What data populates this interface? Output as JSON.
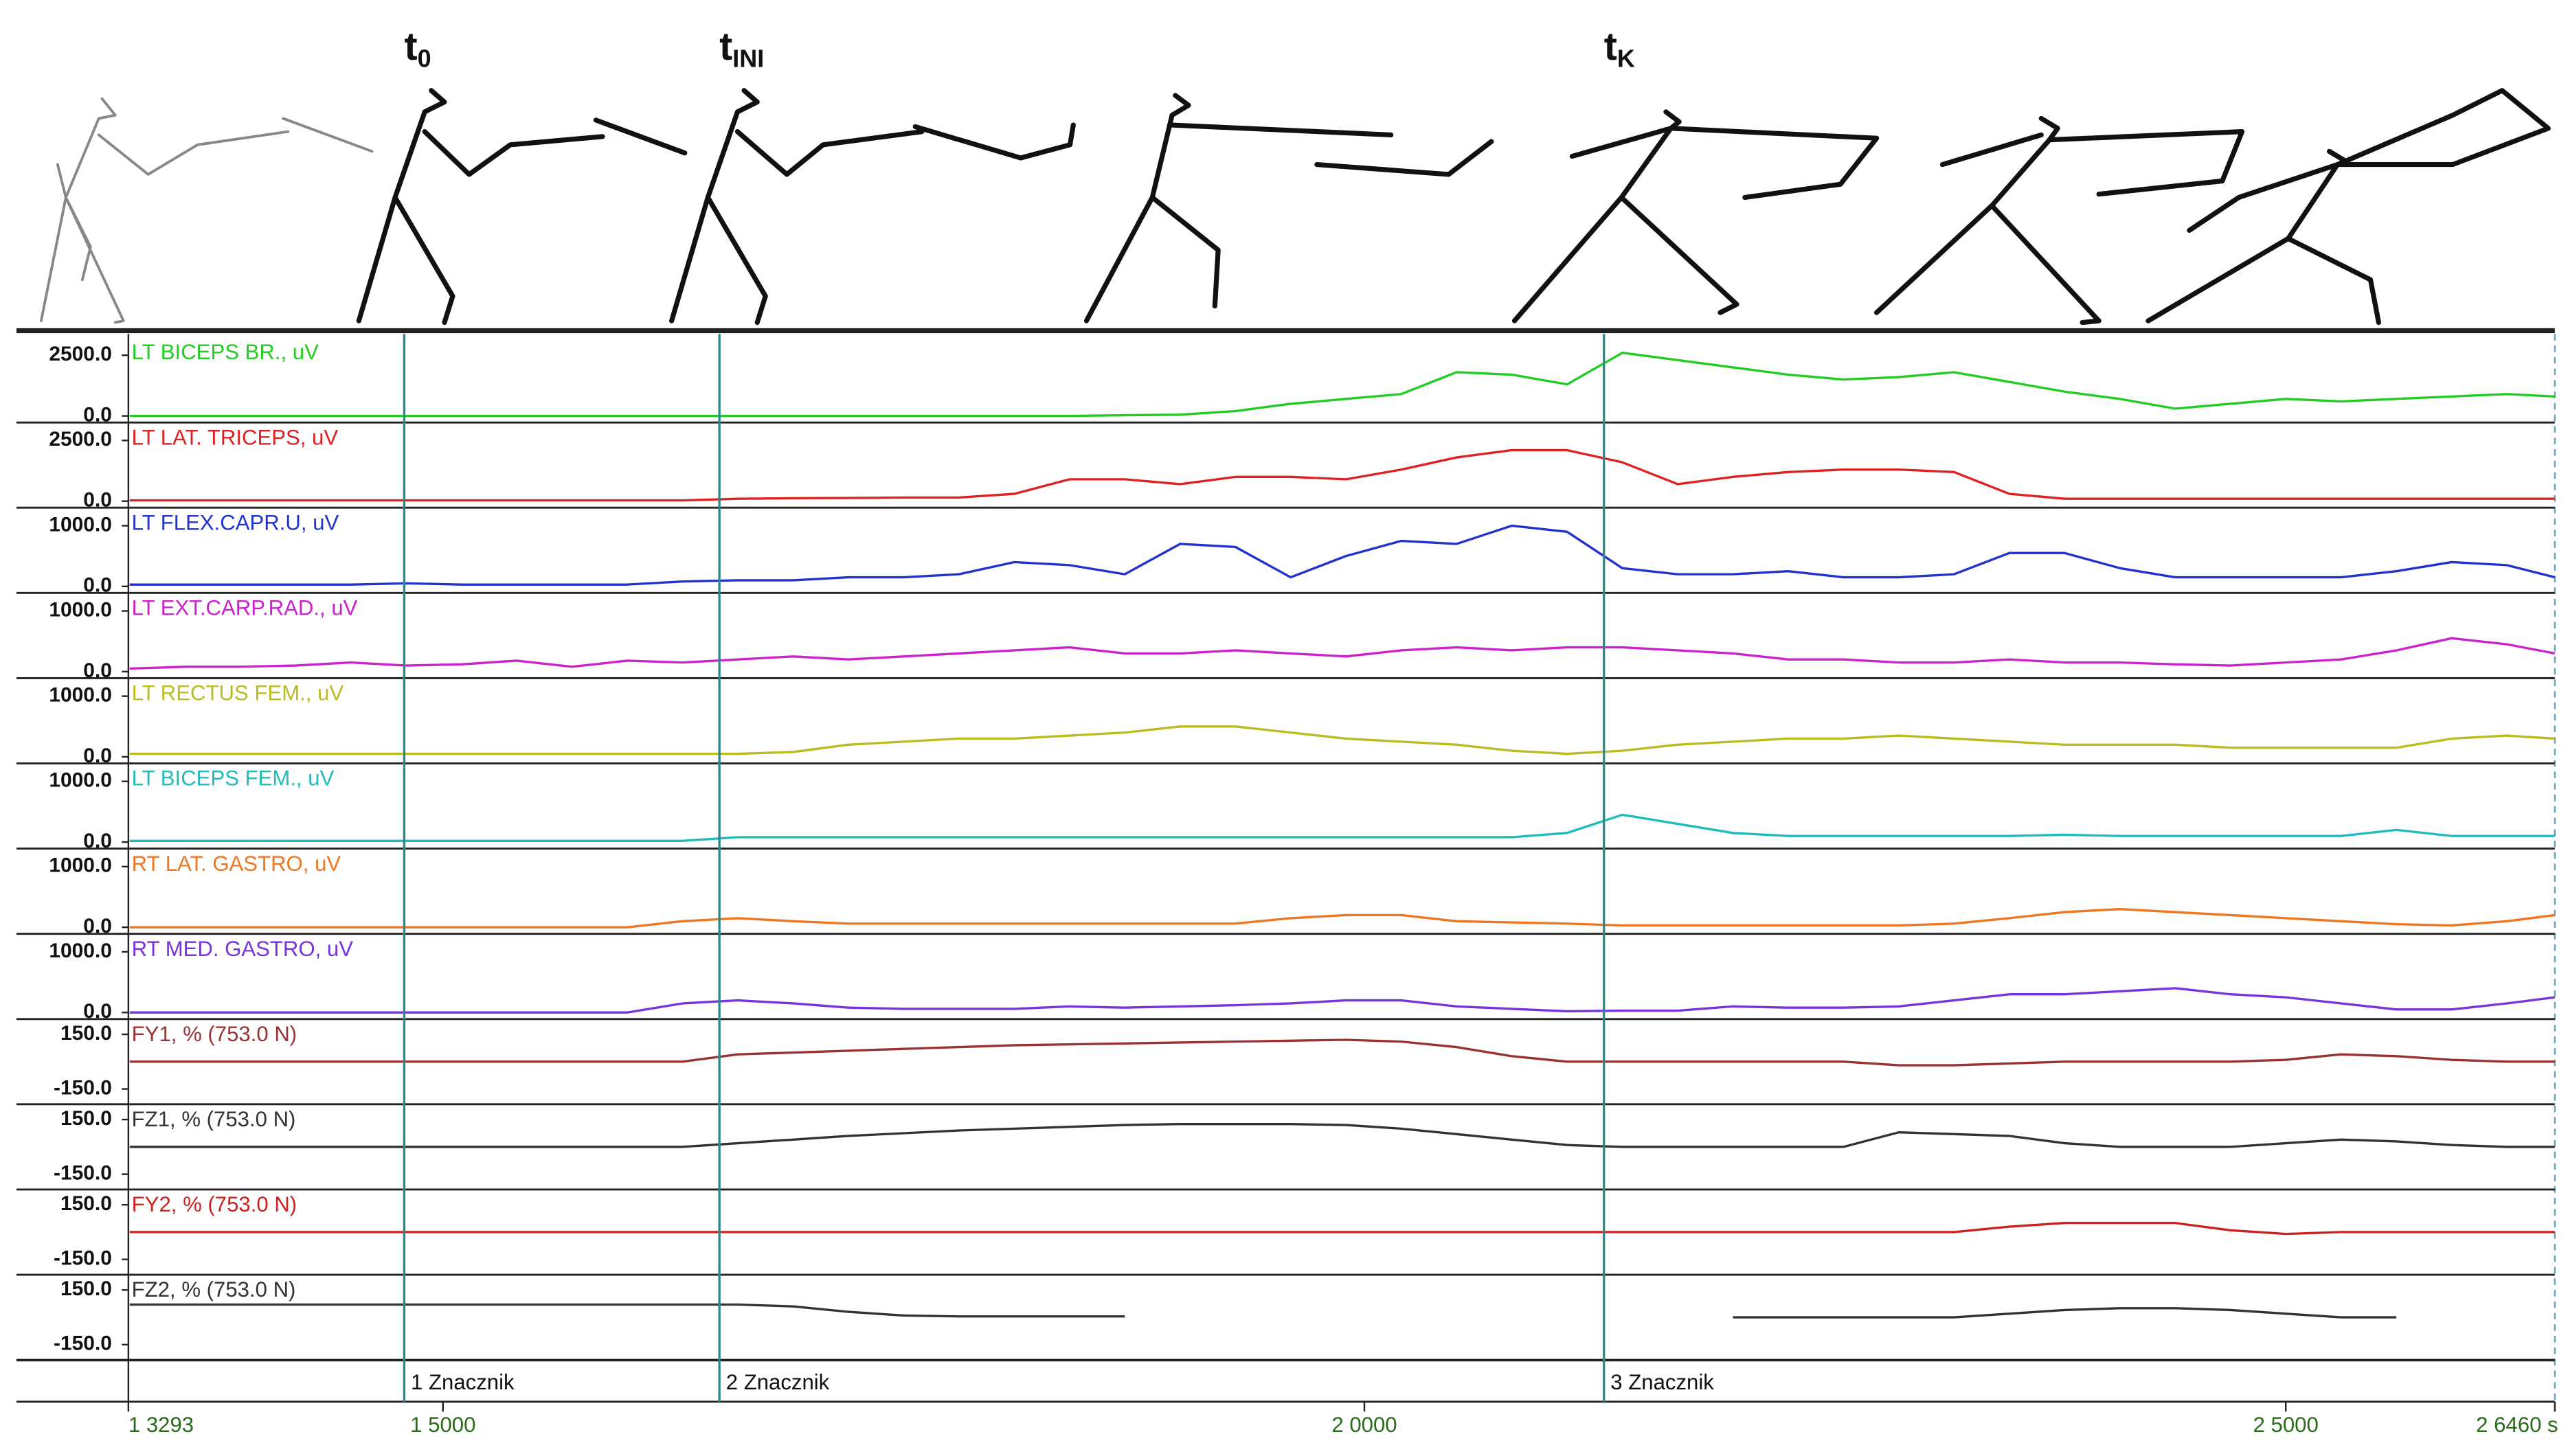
{
  "chart_data": {
    "type": "line",
    "xlim": [
      1.3293,
      2.646
    ],
    "xticks": [
      {
        "value": 1.3293,
        "label": "1 3293"
      },
      {
        "value": 1.5,
        "label": "1 5000"
      },
      {
        "value": 2.0,
        "label": "2 0000"
      },
      {
        "value": 2.5,
        "label": "2 5000"
      },
      {
        "value": 2.646,
        "label": "2 6460 s"
      }
    ],
    "markers": [
      {
        "t": 1.479,
        "label": "1 Znacznik",
        "phase": "t",
        "phase_sub": "0"
      },
      {
        "t": 1.65,
        "label": "2 Znacznik",
        "phase": "t",
        "phase_sub": "INI"
      },
      {
        "t": 2.13,
        "label": "3 Znacznik",
        "phase": "t",
        "phase_sub": "K"
      }
    ],
    "x": [
      1.33,
      1.36,
      1.39,
      1.42,
      1.45,
      1.48,
      1.51,
      1.54,
      1.57,
      1.6,
      1.63,
      1.66,
      1.69,
      1.72,
      1.75,
      1.78,
      1.81,
      1.84,
      1.87,
      1.9,
      1.93,
      1.96,
      1.99,
      2.02,
      2.05,
      2.08,
      2.11,
      2.14,
      2.17,
      2.2,
      2.23,
      2.26,
      2.29,
      2.32,
      2.35,
      2.38,
      2.41,
      2.44,
      2.47,
      2.5,
      2.53,
      2.56,
      2.59,
      2.62,
      2.646
    ],
    "panels": [
      {
        "name": "LT BICEPS BR., uV",
        "color": "#22cc22",
        "ylim": [
          -270,
          3240
        ],
        "yticks": [
          {
            "value": 0,
            "label": "0.0"
          },
          {
            "value": 2500,
            "label": "2500.0"
          }
        ],
        "values": [
          0,
          0,
          0,
          0,
          0,
          0,
          0,
          0,
          0,
          0,
          0,
          0,
          0,
          0,
          0,
          0,
          0,
          0,
          30,
          50,
          200,
          500,
          700,
          900,
          1800,
          1700,
          1300,
          2600,
          2300,
          2000,
          1700,
          1500,
          1600,
          1800,
          1400,
          1000,
          700,
          300,
          500,
          700,
          600,
          700,
          800,
          900,
          800
        ]
      },
      {
        "name": "LT LAT. TRICEPS, uV",
        "color": "#dd2222",
        "ylim": [
          -270,
          3240
        ],
        "yticks": [
          {
            "value": 0,
            "label": "0.0"
          },
          {
            "value": 2500,
            "label": "2500.0"
          }
        ],
        "values": [
          30,
          30,
          30,
          30,
          30,
          30,
          30,
          30,
          30,
          30,
          30,
          100,
          120,
          130,
          150,
          150,
          300,
          900,
          900,
          700,
          1000,
          1000,
          900,
          1300,
          1800,
          2100,
          2100,
          1600,
          700,
          1000,
          1200,
          1300,
          1300,
          1200,
          300,
          100,
          100,
          100,
          100,
          100,
          100,
          100,
          100,
          100,
          100
        ]
      },
      {
        "name": "LT FLEX.CAPR.U, uV",
        "color": "#2233cc",
        "ylim": [
          -108,
          1297
        ],
        "yticks": [
          {
            "value": 0,
            "label": "0.0"
          },
          {
            "value": 1000,
            "label": "1000.0"
          }
        ],
        "values": [
          30,
          30,
          30,
          30,
          30,
          50,
          30,
          30,
          30,
          30,
          80,
          100,
          100,
          150,
          150,
          200,
          400,
          350,
          200,
          700,
          650,
          150,
          500,
          750,
          700,
          1000,
          900,
          300,
          200,
          200,
          250,
          150,
          150,
          200,
          550,
          550,
          300,
          150,
          150,
          150,
          150,
          250,
          400,
          350,
          150
        ]
      },
      {
        "name": "LT EXT.CARP.RAD., uV",
        "color": "#cc22cc",
        "ylim": [
          -108,
          1297
        ],
        "yticks": [
          {
            "value": 0,
            "label": "0.0"
          },
          {
            "value": 1000,
            "label": "1000.0"
          }
        ],
        "values": [
          50,
          80,
          80,
          100,
          150,
          100,
          120,
          180,
          80,
          180,
          150,
          200,
          250,
          200,
          250,
          300,
          350,
          400,
          300,
          300,
          350,
          300,
          250,
          350,
          400,
          350,
          400,
          400,
          350,
          300,
          200,
          200,
          150,
          150,
          200,
          150,
          150,
          120,
          100,
          150,
          200,
          350,
          550,
          450,
          300
        ]
      },
      {
        "name": "LT RECTUS FEM., uV",
        "color": "#bbbb22",
        "ylim": [
          -108,
          1297
        ],
        "yticks": [
          {
            "value": 0,
            "label": "0.0"
          },
          {
            "value": 1000,
            "label": "1000.0"
          }
        ],
        "values": [
          50,
          50,
          50,
          50,
          50,
          50,
          50,
          50,
          50,
          50,
          50,
          50,
          80,
          200,
          250,
          300,
          300,
          350,
          400,
          500,
          500,
          400,
          300,
          250,
          200,
          100,
          50,
          100,
          200,
          250,
          300,
          300,
          350,
          300,
          250,
          200,
          200,
          200,
          150,
          150,
          150,
          150,
          300,
          350,
          300
        ]
      },
      {
        "name": "LT BICEPS FEM., uV",
        "color": "#22bbbb",
        "ylim": [
          -108,
          1297
        ],
        "yticks": [
          {
            "value": 0,
            "label": "0.0"
          },
          {
            "value": 1000,
            "label": "1000.0"
          }
        ],
        "values": [
          20,
          20,
          20,
          20,
          20,
          20,
          20,
          20,
          20,
          20,
          20,
          80,
          80,
          80,
          80,
          80,
          80,
          80,
          80,
          80,
          80,
          80,
          80,
          80,
          80,
          80,
          150,
          450,
          300,
          150,
          100,
          100,
          100,
          100,
          100,
          120,
          100,
          100,
          100,
          100,
          100,
          200,
          100,
          100,
          100
        ]
      },
      {
        "name": "RT LAT. GASTRO, uV",
        "color": "#ee7722",
        "ylim": [
          -108,
          1297
        ],
        "yticks": [
          {
            "value": 0,
            "label": "0.0"
          },
          {
            "value": 1000,
            "label": "1000.0"
          }
        ],
        "values": [
          0,
          0,
          0,
          0,
          0,
          0,
          0,
          0,
          0,
          0,
          100,
          150,
          100,
          60,
          60,
          60,
          60,
          60,
          60,
          60,
          60,
          150,
          200,
          200,
          100,
          80,
          60,
          30,
          30,
          30,
          30,
          30,
          30,
          60,
          150,
          250,
          300,
          250,
          200,
          150,
          100,
          50,
          30,
          100,
          200
        ]
      },
      {
        "name": "RT MED. GASTRO, uV",
        "color": "#7733dd",
        "ylim": [
          -108,
          1297
        ],
        "yticks": [
          {
            "value": 0,
            "label": "0.0"
          },
          {
            "value": 1000,
            "label": "1000.0"
          }
        ],
        "values": [
          0,
          0,
          0,
          0,
          0,
          0,
          0,
          0,
          0,
          0,
          150,
          200,
          150,
          80,
          60,
          60,
          60,
          100,
          80,
          100,
          120,
          150,
          200,
          200,
          100,
          60,
          20,
          30,
          30,
          100,
          80,
          80,
          100,
          200,
          300,
          300,
          350,
          400,
          300,
          250,
          150,
          50,
          50,
          150,
          250
        ]
      },
      {
        "name": "FY1, % (753.0 N)",
        "color": "#993333",
        "ylim": [
          -234,
          234
        ],
        "yticks": [
          {
            "value": -150,
            "label": "-150.0"
          },
          {
            "value": 150,
            "label": "150.0"
          }
        ],
        "values": [
          0,
          0,
          0,
          0,
          0,
          0,
          0,
          0,
          0,
          0,
          0,
          40,
          50,
          60,
          70,
          80,
          90,
          95,
          100,
          105,
          110,
          115,
          120,
          110,
          80,
          30,
          0,
          0,
          0,
          0,
          0,
          0,
          -20,
          -20,
          -10,
          0,
          0,
          0,
          0,
          10,
          40,
          30,
          10,
          0,
          0
        ]
      },
      {
        "name": "FZ1, % (753.0 N)",
        "color": "#333333",
        "ylim": [
          -234,
          234
        ],
        "yticks": [
          {
            "value": -150,
            "label": "-150.0"
          },
          {
            "value": 150,
            "label": "150.0"
          }
        ],
        "values": [
          0,
          0,
          0,
          0,
          0,
          0,
          0,
          0,
          0,
          0,
          0,
          20,
          40,
          60,
          75,
          90,
          100,
          110,
          120,
          125,
          125,
          125,
          120,
          100,
          70,
          40,
          10,
          0,
          0,
          0,
          0,
          0,
          80,
          70,
          60,
          20,
          0,
          0,
          0,
          20,
          40,
          30,
          10,
          0,
          0
        ]
      },
      {
        "name": "FY2, % (753.0 N)",
        "color": "#cc2222",
        "ylim": [
          -234,
          234
        ],
        "yticks": [
          {
            "value": -150,
            "label": "-150.0"
          },
          {
            "value": 150,
            "label": "150.0"
          }
        ],
        "values": [
          0,
          0,
          0,
          0,
          0,
          0,
          0,
          0,
          0,
          0,
          0,
          0,
          0,
          0,
          0,
          0,
          0,
          0,
          0,
          0,
          0,
          0,
          0,
          0,
          0,
          0,
          0,
          0,
          0,
          0,
          0,
          0,
          0,
          0,
          30,
          50,
          50,
          50,
          10,
          -10,
          0,
          0,
          0,
          0,
          0
        ]
      },
      {
        "name": "FZ2, % (753.0 N)",
        "color": "#333333",
        "ylim": [
          -234,
          234
        ],
        "yticks": [
          {
            "value": -150,
            "label": "-150.0"
          },
          {
            "value": 150,
            "label": "150.0"
          }
        ],
        "values": [
          70,
          70,
          70,
          70,
          70,
          70,
          70,
          70,
          70,
          70,
          70,
          70,
          60,
          30,
          10,
          5,
          5,
          5,
          5,
          null,
          null,
          null,
          null,
          null,
          null,
          null,
          null,
          null,
          null,
          0,
          0,
          0,
          0,
          0,
          20,
          40,
          50,
          50,
          40,
          20,
          0,
          0,
          null,
          null,
          null
        ]
      }
    ]
  }
}
